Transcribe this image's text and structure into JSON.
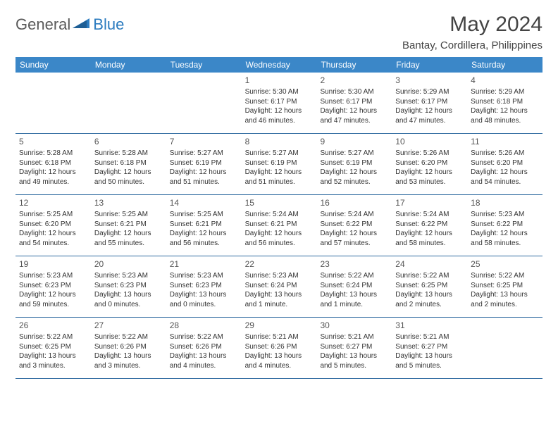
{
  "header": {
    "logo_general": "General",
    "logo_blue": "Blue",
    "month_title": "May 2024",
    "location": "Bantay, Cordillera, Philippines"
  },
  "colors": {
    "header_bg": "#3b87c8",
    "header_text": "#ffffff",
    "row_border": "#2f6aa0",
    "body_text": "#333333",
    "logo_gray": "#5a5a5a",
    "logo_blue": "#2b7bbf"
  },
  "weekdays": [
    "Sunday",
    "Monday",
    "Tuesday",
    "Wednesday",
    "Thursday",
    "Friday",
    "Saturday"
  ],
  "weeks": [
    [
      null,
      null,
      null,
      {
        "n": "1",
        "sr": "Sunrise: 5:30 AM",
        "ss": "Sunset: 6:17 PM",
        "d1": "Daylight: 12 hours",
        "d2": "and 46 minutes."
      },
      {
        "n": "2",
        "sr": "Sunrise: 5:30 AM",
        "ss": "Sunset: 6:17 PM",
        "d1": "Daylight: 12 hours",
        "d2": "and 47 minutes."
      },
      {
        "n": "3",
        "sr": "Sunrise: 5:29 AM",
        "ss": "Sunset: 6:17 PM",
        "d1": "Daylight: 12 hours",
        "d2": "and 47 minutes."
      },
      {
        "n": "4",
        "sr": "Sunrise: 5:29 AM",
        "ss": "Sunset: 6:18 PM",
        "d1": "Daylight: 12 hours",
        "d2": "and 48 minutes."
      }
    ],
    [
      {
        "n": "5",
        "sr": "Sunrise: 5:28 AM",
        "ss": "Sunset: 6:18 PM",
        "d1": "Daylight: 12 hours",
        "d2": "and 49 minutes."
      },
      {
        "n": "6",
        "sr": "Sunrise: 5:28 AM",
        "ss": "Sunset: 6:18 PM",
        "d1": "Daylight: 12 hours",
        "d2": "and 50 minutes."
      },
      {
        "n": "7",
        "sr": "Sunrise: 5:27 AM",
        "ss": "Sunset: 6:19 PM",
        "d1": "Daylight: 12 hours",
        "d2": "and 51 minutes."
      },
      {
        "n": "8",
        "sr": "Sunrise: 5:27 AM",
        "ss": "Sunset: 6:19 PM",
        "d1": "Daylight: 12 hours",
        "d2": "and 51 minutes."
      },
      {
        "n": "9",
        "sr": "Sunrise: 5:27 AM",
        "ss": "Sunset: 6:19 PM",
        "d1": "Daylight: 12 hours",
        "d2": "and 52 minutes."
      },
      {
        "n": "10",
        "sr": "Sunrise: 5:26 AM",
        "ss": "Sunset: 6:20 PM",
        "d1": "Daylight: 12 hours",
        "d2": "and 53 minutes."
      },
      {
        "n": "11",
        "sr": "Sunrise: 5:26 AM",
        "ss": "Sunset: 6:20 PM",
        "d1": "Daylight: 12 hours",
        "d2": "and 54 minutes."
      }
    ],
    [
      {
        "n": "12",
        "sr": "Sunrise: 5:25 AM",
        "ss": "Sunset: 6:20 PM",
        "d1": "Daylight: 12 hours",
        "d2": "and 54 minutes."
      },
      {
        "n": "13",
        "sr": "Sunrise: 5:25 AM",
        "ss": "Sunset: 6:21 PM",
        "d1": "Daylight: 12 hours",
        "d2": "and 55 minutes."
      },
      {
        "n": "14",
        "sr": "Sunrise: 5:25 AM",
        "ss": "Sunset: 6:21 PM",
        "d1": "Daylight: 12 hours",
        "d2": "and 56 minutes."
      },
      {
        "n": "15",
        "sr": "Sunrise: 5:24 AM",
        "ss": "Sunset: 6:21 PM",
        "d1": "Daylight: 12 hours",
        "d2": "and 56 minutes."
      },
      {
        "n": "16",
        "sr": "Sunrise: 5:24 AM",
        "ss": "Sunset: 6:22 PM",
        "d1": "Daylight: 12 hours",
        "d2": "and 57 minutes."
      },
      {
        "n": "17",
        "sr": "Sunrise: 5:24 AM",
        "ss": "Sunset: 6:22 PM",
        "d1": "Daylight: 12 hours",
        "d2": "and 58 minutes."
      },
      {
        "n": "18",
        "sr": "Sunrise: 5:23 AM",
        "ss": "Sunset: 6:22 PM",
        "d1": "Daylight: 12 hours",
        "d2": "and 58 minutes."
      }
    ],
    [
      {
        "n": "19",
        "sr": "Sunrise: 5:23 AM",
        "ss": "Sunset: 6:23 PM",
        "d1": "Daylight: 12 hours",
        "d2": "and 59 minutes."
      },
      {
        "n": "20",
        "sr": "Sunrise: 5:23 AM",
        "ss": "Sunset: 6:23 PM",
        "d1": "Daylight: 13 hours",
        "d2": "and 0 minutes."
      },
      {
        "n": "21",
        "sr": "Sunrise: 5:23 AM",
        "ss": "Sunset: 6:23 PM",
        "d1": "Daylight: 13 hours",
        "d2": "and 0 minutes."
      },
      {
        "n": "22",
        "sr": "Sunrise: 5:23 AM",
        "ss": "Sunset: 6:24 PM",
        "d1": "Daylight: 13 hours",
        "d2": "and 1 minute."
      },
      {
        "n": "23",
        "sr": "Sunrise: 5:22 AM",
        "ss": "Sunset: 6:24 PM",
        "d1": "Daylight: 13 hours",
        "d2": "and 1 minute."
      },
      {
        "n": "24",
        "sr": "Sunrise: 5:22 AM",
        "ss": "Sunset: 6:25 PM",
        "d1": "Daylight: 13 hours",
        "d2": "and 2 minutes."
      },
      {
        "n": "25",
        "sr": "Sunrise: 5:22 AM",
        "ss": "Sunset: 6:25 PM",
        "d1": "Daylight: 13 hours",
        "d2": "and 2 minutes."
      }
    ],
    [
      {
        "n": "26",
        "sr": "Sunrise: 5:22 AM",
        "ss": "Sunset: 6:25 PM",
        "d1": "Daylight: 13 hours",
        "d2": "and 3 minutes."
      },
      {
        "n": "27",
        "sr": "Sunrise: 5:22 AM",
        "ss": "Sunset: 6:26 PM",
        "d1": "Daylight: 13 hours",
        "d2": "and 3 minutes."
      },
      {
        "n": "28",
        "sr": "Sunrise: 5:22 AM",
        "ss": "Sunset: 6:26 PM",
        "d1": "Daylight: 13 hours",
        "d2": "and 4 minutes."
      },
      {
        "n": "29",
        "sr": "Sunrise: 5:21 AM",
        "ss": "Sunset: 6:26 PM",
        "d1": "Daylight: 13 hours",
        "d2": "and 4 minutes."
      },
      {
        "n": "30",
        "sr": "Sunrise: 5:21 AM",
        "ss": "Sunset: 6:27 PM",
        "d1": "Daylight: 13 hours",
        "d2": "and 5 minutes."
      },
      {
        "n": "31",
        "sr": "Sunrise: 5:21 AM",
        "ss": "Sunset: 6:27 PM",
        "d1": "Daylight: 13 hours",
        "d2": "and 5 minutes."
      },
      null
    ]
  ]
}
